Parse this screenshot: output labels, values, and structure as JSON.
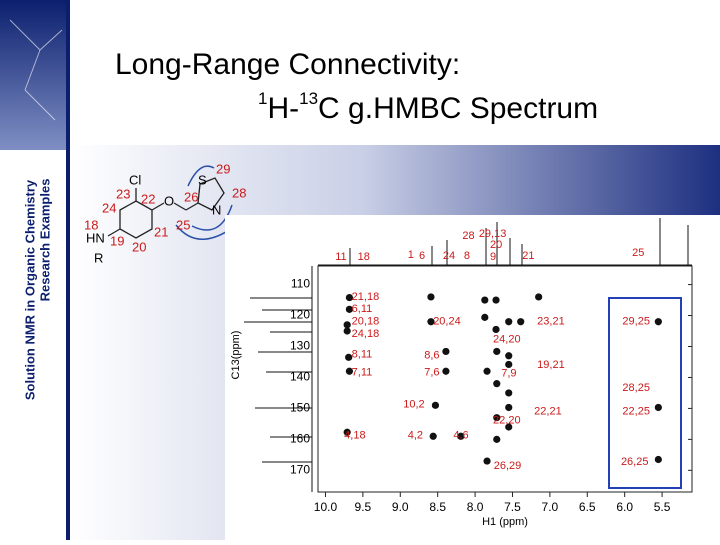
{
  "sidebar": {
    "line1": "Solution NMR in Organic Chemistry",
    "line2": "Research Examples"
  },
  "title": {
    "line1": "Long-Range Connectivity:",
    "sup1": "1",
    "h": "H-",
    "sup2": "13",
    "rest": "C g.HMBC Spectrum"
  },
  "molecule": {
    "cl": "Cl",
    "o": "O",
    "s": "S",
    "n": "N",
    "hn": "HN",
    "r": "R",
    "n23": "23",
    "n22": "22",
    "n24": "24",
    "n21": "21",
    "n20": "20",
    "n19": "19",
    "n18": "18",
    "n26": "26",
    "n29": "29",
    "n28": "28",
    "n25": "25"
  },
  "chart_data": {
    "type": "scatter",
    "x": [
      9.68,
      9.68,
      9.71,
      9.71,
      9.69,
      9.68,
      9.71,
      8.59,
      8.59,
      8.39,
      8.39,
      8.56,
      8.19,
      7.87,
      7.72,
      7.87,
      7.72,
      7.55,
      7.39,
      7.71,
      7.55,
      7.84,
      7.71,
      7.55,
      7.55,
      8.53,
      7.55,
      7.71,
      7.71,
      7.55,
      7.84,
      5.55,
      5.55,
      5.55,
      7.15
    ],
    "y": [
      114.2,
      118,
      123,
      125,
      133.5,
      138,
      157.7,
      114,
      122,
      131.6,
      138,
      159,
      159,
      115,
      115,
      120.6,
      124.5,
      122,
      122,
      131.6,
      133,
      138,
      142,
      135.8,
      145,
      149,
      149.7,
      153,
      160,
      156,
      167,
      122,
      149.7,
      166.5,
      114
    ],
    "color": "#111111",
    "xlim": [
      10.1,
      5.1
    ],
    "ylim": [
      104,
      177
    ],
    "xticks": [
      {
        "value": 10,
        "label": "10.0"
      },
      9.5,
      {
        "value": 9,
        "label": "9.0"
      },
      8.5,
      {
        "value": 8,
        "label": "8.0"
      },
      7.5,
      {
        "value": 7,
        "label": "7.0"
      },
      6.5,
      {
        "value": 6,
        "label": "6.0"
      },
      5.5
    ],
    "yticks": [
      110,
      120,
      130,
      140,
      150,
      160,
      170
    ],
    "xlabel": "H1 (ppm)",
    "ylabel": "C13(ppm)",
    "annotation_color": "#cc1a1a",
    "annotations": [
      {
        "text": "21,18",
        "x": 9.65,
        "y": 114
      },
      {
        "text": "6,11",
        "x": 9.65,
        "y": 118
      },
      {
        "text": "20,18",
        "x": 9.65,
        "y": 122
      },
      {
        "text": "24,18",
        "x": 9.65,
        "y": 126
      },
      {
        "text": "8,11",
        "x": 9.65,
        "y": 132.6
      },
      {
        "text": "7,11",
        "x": 9.65,
        "y": 138.4
      },
      {
        "text": "4,18",
        "x": 9.75,
        "y": 158.7
      },
      {
        "text": "20,24",
        "x": 8.56,
        "y": 122
      },
      {
        "text": "23,21",
        "x": 7.17,
        "y": 122
      },
      {
        "text": "24,20",
        "x": 7.76,
        "y": 127.7
      },
      {
        "text": "8,6",
        "x": 8.68,
        "y": 133
      },
      {
        "text": "7,6",
        "x": 8.68,
        "y": 138.4
      },
      {
        "text": "7,9",
        "x": 7.65,
        "y": 138.7
      },
      {
        "text": "19,21",
        "x": 7.17,
        "y": 136
      },
      {
        "text": "10,2",
        "x": 8.96,
        "y": 148.7
      },
      {
        "text": "22,21",
        "x": 7.21,
        "y": 151
      },
      {
        "text": "22,20",
        "x": 7.76,
        "y": 154
      },
      {
        "text": "4,2",
        "x": 8.9,
        "y": 158.7
      },
      {
        "text": "4,6",
        "x": 8.29,
        "y": 158.7
      },
      {
        "text": "26,29",
        "x": 7.75,
        "y": 168.7
      },
      {
        "text": "29,25",
        "x": 6.03,
        "y": 122
      },
      {
        "text": "28,25",
        "x": 6.03,
        "y": 143.5
      },
      {
        "text": "22,25",
        "x": 6.03,
        "y": 151
      },
      {
        "text": "26,25",
        "x": 6.05,
        "y": 167.4
      }
    ],
    "spectrum_labels": [
      {
        "text": "11",
        "x": 9.87
      },
      {
        "text": "18",
        "x": 9.57
      },
      {
        "text": "1",
        "x": 8.9
      },
      {
        "text": "6",
        "x": 8.75
      },
      {
        "text": "24",
        "x": 8.43
      },
      {
        "text": "8",
        "x": 8.15
      },
      {
        "text": "28",
        "x": 8.17
      },
      {
        "text": "29,13",
        "x": 7.95
      },
      {
        "text": "20",
        "x": 7.8
      },
      {
        "text": "9",
        "x": 7.8
      },
      {
        "text": "21",
        "x": 7.37
      },
      {
        "text": "25",
        "x": 5.9
      }
    ]
  }
}
